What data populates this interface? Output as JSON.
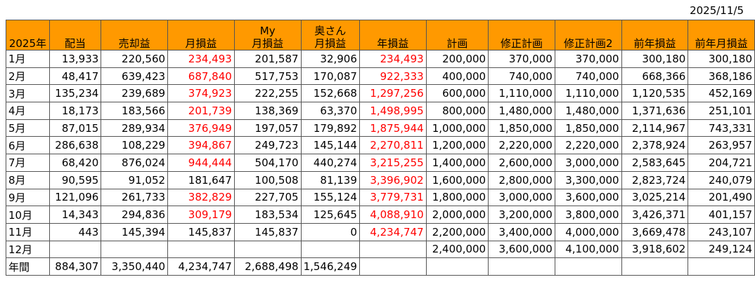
{
  "date": "2025/11/5",
  "headers": [
    {
      "line1": "",
      "line2": "2025年"
    },
    {
      "line1": "",
      "line2": "配当"
    },
    {
      "line1": "",
      "line2": "売却益"
    },
    {
      "line1": "",
      "line2": "月損益"
    },
    {
      "line1": "My",
      "line2": "月損益"
    },
    {
      "line1": "奥さん",
      "line2": "月損益"
    },
    {
      "line1": "",
      "line2": "年損益"
    },
    {
      "line1": "",
      "line2": "計画"
    },
    {
      "line1": "",
      "line2": "修正計画"
    },
    {
      "line1": "",
      "line2": "修正計画2"
    },
    {
      "line1": "",
      "line2": "前年損益"
    },
    {
      "line1": "",
      "line2": "前年月損益"
    }
  ],
  "rows": [
    [
      "1月",
      "13,933",
      "220,560",
      "234,493",
      "201,587",
      "32,906",
      "234,493",
      "200,000",
      "370,000",
      "370,000",
      "300,180",
      "300,180"
    ],
    [
      "2月",
      "48,417",
      "639,423",
      "687,840",
      "517,753",
      "170,087",
      "922,333",
      "400,000",
      "740,000",
      "740,000",
      "668,366",
      "368,186"
    ],
    [
      "3月",
      "135,234",
      "239,689",
      "374,923",
      "222,255",
      "152,668",
      "1,297,256",
      "600,000",
      "1,110,000",
      "1,110,000",
      "1,120,535",
      "452,169"
    ],
    [
      "4月",
      "18,173",
      "183,566",
      "201,739",
      "138,369",
      "63,370",
      "1,498,995",
      "800,000",
      "1,480,000",
      "1,480,000",
      "1,371,636",
      "251,101"
    ],
    [
      "5月",
      "87,015",
      "289,934",
      "376,949",
      "197,057",
      "179,892",
      "1,875,944",
      "1,000,000",
      "1,850,000",
      "1,850,000",
      "2,114,967",
      "743,331"
    ],
    [
      "6月",
      "286,638",
      "108,229",
      "394,867",
      "249,723",
      "145,144",
      "2,270,811",
      "1,200,000",
      "2,220,000",
      "2,220,000",
      "2,378,924",
      "263,957"
    ],
    [
      "7月",
      "68,420",
      "876,024",
      "944,444",
      "504,170",
      "440,274",
      "3,215,255",
      "1,400,000",
      "2,600,000",
      "3,000,000",
      "2,583,645",
      "204,721"
    ],
    [
      "8月",
      "90,595",
      "91,052",
      "181,647",
      "100,508",
      "81,139",
      "3,396,902",
      "1,600,000",
      "2,800,000",
      "3,300,000",
      "2,823,724",
      "240,079"
    ],
    [
      "9月",
      "121,096",
      "261,733",
      "382,829",
      "227,705",
      "155,124",
      "3,779,731",
      "1,800,000",
      "3,000,000",
      "3,600,000",
      "3,025,214",
      "201,490"
    ],
    [
      "10月",
      "14,343",
      "294,836",
      "309,179",
      "183,534",
      "125,645",
      "4,088,910",
      "2,000,000",
      "3,200,000",
      "3,800,000",
      "3,426,371",
      "401,157"
    ],
    [
      "11月",
      "443",
      "145,394",
      "145,837",
      "145,837",
      "0",
      "4,234,747",
      "2,200,000",
      "3,400,000",
      "4,000,000",
      "3,669,478",
      "243,107"
    ],
    [
      "12月",
      "",
      "",
      "",
      "",
      "",
      "",
      "2,400,000",
      "3,600,000",
      "4,100,000",
      "3,918,602",
      "249,124"
    ],
    [
      "年間",
      "884,307",
      "3,350,440",
      "4,234,747",
      "2,688,498",
      "1,546,249",
      "",
      "",
      "",
      "",
      "",
      ""
    ]
  ],
  "red_cells": {
    "monthly_profit_red_rows": [
      0,
      1,
      2,
      3,
      4,
      5,
      6,
      8,
      9
    ],
    "annual_profit_red_rows": [
      0,
      1,
      2,
      3,
      4,
      5,
      6,
      7,
      8,
      9,
      10
    ]
  },
  "colors": {
    "header_bg": "#ff9900",
    "highlight_text": "#ff0000"
  }
}
